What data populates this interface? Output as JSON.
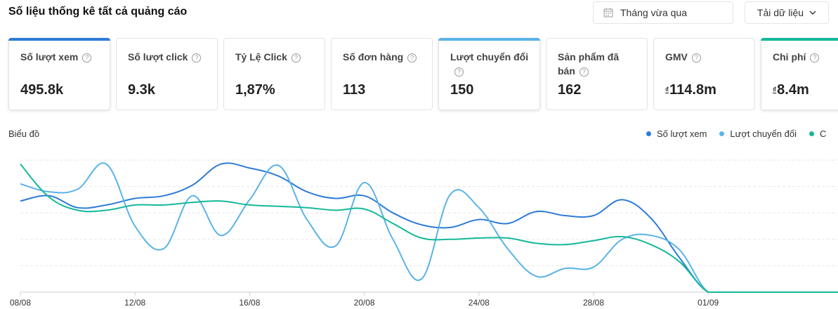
{
  "header": {
    "title": "Số liệu thống kê tất cả quảng cáo"
  },
  "toolbar": {
    "date_range": "Tháng vừa qua",
    "date_icon": "calendar-icon",
    "download_label": "Tải dữ liệu",
    "download_icon": "chevron-down-icon"
  },
  "cards": [
    {
      "label": "Số lượt xem",
      "value": "495.8k",
      "selected": true,
      "accent": "#2e7bd6"
    },
    {
      "label": "Số lượt click",
      "value": "9.3k"
    },
    {
      "label": "Tỷ Lệ Click",
      "value": "1,87%"
    },
    {
      "label": "Số đơn hàng",
      "value": "113"
    },
    {
      "label": "Lượt chuyển đổi",
      "value": "150",
      "selected": true,
      "accent": "#5ab3e8"
    },
    {
      "label": "Sản phẩm đã bán",
      "value": "162"
    },
    {
      "label": "GMV",
      "currency": "₫",
      "value": "114.8m"
    },
    {
      "label": "Chi phí",
      "currency": "₫",
      "value": "8.4m",
      "selected": true,
      "accent": "#15b89a"
    }
  ],
  "chart_section": {
    "title": "Biểu đồ"
  },
  "colors": {
    "views": "#2e7bd6",
    "conversions": "#5ab3e8",
    "cost": "#15b89a"
  },
  "chart_data": {
    "type": "line",
    "x": [
      "08/08",
      "09/08",
      "10/08",
      "11/08",
      "12/08",
      "13/08",
      "14/08",
      "15/08",
      "16/08",
      "17/08",
      "18/08",
      "19/08",
      "20/08",
      "21/08",
      "22/08",
      "23/08",
      "24/08",
      "25/08",
      "26/08",
      "27/08",
      "28/08",
      "29/08",
      "30/08",
      "31/08",
      "01/09",
      "02/09",
      "03/09",
      "04/09",
      "05/09",
      "06/09"
    ],
    "xticks": [
      "08/08",
      "12/08",
      "16/08",
      "20/08",
      "24/08",
      "28/08",
      "01/09"
    ],
    "legend": [
      "Số lượt xem",
      "Lượt chuyển đổi",
      "C"
    ],
    "legend_position": "top-right",
    "grid": true,
    "ylim": [
      0,
      1
    ],
    "series": [
      {
        "name": "Số lượt xem",
        "color": "#2e7bd6",
        "values": [
          0.69,
          0.73,
          0.64,
          0.66,
          0.71,
          0.73,
          0.81,
          0.97,
          0.94,
          0.88,
          0.76,
          0.71,
          0.73,
          0.6,
          0.51,
          0.49,
          0.55,
          0.52,
          0.61,
          0.58,
          0.58,
          0.7,
          0.56,
          0.26,
          0.0,
          0.0,
          0.0,
          0.0,
          0.0,
          0.0
        ]
      },
      {
        "name": "Lượt chuyển đổi",
        "color": "#5ab3e8",
        "values": [
          0.82,
          0.76,
          0.78,
          0.97,
          0.5,
          0.33,
          0.73,
          0.43,
          0.7,
          0.96,
          0.55,
          0.35,
          0.83,
          0.4,
          0.1,
          0.74,
          0.64,
          0.33,
          0.12,
          0.18,
          0.19,
          0.4,
          0.43,
          0.32,
          0.0,
          0.0,
          0.0,
          0.0,
          0.0,
          0.0
        ]
      },
      {
        "name": "C",
        "color": "#15b89a",
        "values": [
          0.97,
          0.72,
          0.62,
          0.62,
          0.66,
          0.66,
          0.68,
          0.69,
          0.66,
          0.65,
          0.64,
          0.62,
          0.63,
          0.52,
          0.41,
          0.4,
          0.41,
          0.41,
          0.37,
          0.36,
          0.39,
          0.42,
          0.36,
          0.23,
          0.0,
          0.0,
          0.0,
          0.0,
          0.0,
          0.0
        ]
      }
    ]
  }
}
